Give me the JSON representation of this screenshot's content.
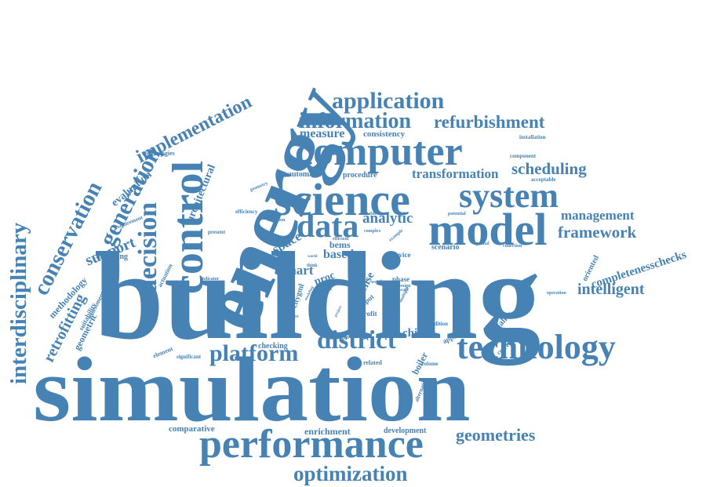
{
  "accent_color": "#4682b4",
  "words": [
    {
      "text": "simulation"
    },
    {
      "text": "building"
    },
    {
      "text": "energy"
    },
    {
      "text": "science"
    },
    {
      "text": "computer"
    },
    {
      "text": "technology"
    },
    {
      "text": "performance"
    },
    {
      "text": "model"
    },
    {
      "text": "control"
    },
    {
      "text": "system"
    },
    {
      "text": "data"
    },
    {
      "text": "interdisciplinary"
    },
    {
      "text": "conservation"
    },
    {
      "text": "optimization"
    },
    {
      "text": "district"
    },
    {
      "text": "platform"
    },
    {
      "text": "decision"
    },
    {
      "text": "generation"
    },
    {
      "text": "application"
    },
    {
      "text": "information"
    },
    {
      "text": "refurbishment"
    },
    {
      "text": "implementation"
    },
    {
      "text": "framework"
    },
    {
      "text": "scheduling"
    },
    {
      "text": "geometries"
    },
    {
      "text": "intelligent"
    },
    {
      "text": "management"
    },
    {
      "text": "measure"
    },
    {
      "text": "transformation"
    },
    {
      "text": "completenesschecks"
    },
    {
      "text": "retrofitting"
    },
    {
      "text": "support"
    },
    {
      "text": "architectural"
    },
    {
      "text": "evaluation"
    },
    {
      "text": "space"
    },
    {
      "text": "analytic"
    },
    {
      "text": "based"
    },
    {
      "text": "smart"
    },
    {
      "text": "chiller"
    },
    {
      "text": "enrichment"
    },
    {
      "text": "comparative"
    },
    {
      "text": "development"
    },
    {
      "text": "checking"
    },
    {
      "text": "methodology"
    },
    {
      "text": "geometric"
    },
    {
      "text": "combining"
    },
    {
      "text": "consistency"
    },
    {
      "text": "automatic"
    },
    {
      "text": "procedure"
    },
    {
      "text": "technologies"
    },
    {
      "text": "scenario"
    },
    {
      "text": "service"
    },
    {
      "text": "boiler"
    },
    {
      "text": "quality"
    },
    {
      "text": "approach"
    },
    {
      "text": "oriented"
    },
    {
      "text": "installation"
    },
    {
      "text": "acceptable"
    },
    {
      "text": "component"
    },
    {
      "text": "efficiency"
    },
    {
      "text": "criterion"
    },
    {
      "text": "requirement"
    },
    {
      "text": "present"
    },
    {
      "text": "actuation"
    },
    {
      "text": "assessment"
    },
    {
      "text": "suitability"
    },
    {
      "text": "element"
    },
    {
      "text": "significant"
    },
    {
      "text": "operational"
    },
    {
      "text": "european"
    },
    {
      "text": "related"
    },
    {
      "text": "alternative"
    },
    {
      "text": "volume"
    },
    {
      "text": "condition"
    },
    {
      "text": "correctness"
    },
    {
      "text": "operation"
    },
    {
      "text": "optimal"
    },
    {
      "text": "collection"
    },
    {
      "text": "potential"
    },
    {
      "text": "suitable"
    },
    {
      "text": "complex"
    },
    {
      "text": "example"
    },
    {
      "text": "geometry"
    },
    {
      "text": "indicator"
    },
    {
      "text": "bems"
    },
    {
      "text": "efficient"
    },
    {
      "text": "proc"
    },
    {
      "text": "sense"
    },
    {
      "text": "tool"
    },
    {
      "text": "input"
    },
    {
      "text": "citygml"
    },
    {
      "text": "retrofit"
    },
    {
      "text": "phase"
    },
    {
      "text": "design"
    },
    {
      "text": "paper"
    },
    {
      "text": "surface"
    },
    {
      "text": "think"
    },
    {
      "text": "source"
    },
    {
      "text": "weather"
    },
    {
      "text": "multiple"
    },
    {
      "text": "stage"
    },
    {
      "text": "world"
    },
    {
      "text": "modeling"
    },
    {
      "text": "project"
    }
  ]
}
